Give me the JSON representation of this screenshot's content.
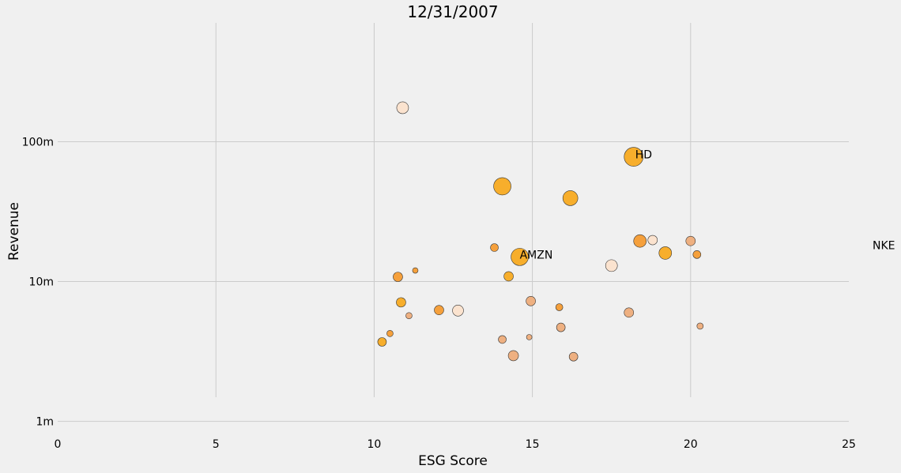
{
  "chart_data": {
    "type": "scatter",
    "title": "12/31/2007",
    "xlabel": "ESG Score",
    "ylabel": "Revenue",
    "xlim": [
      0,
      25
    ],
    "ylim_log10": [
      5.8,
      8.85
    ],
    "yscale": "log",
    "grid": true,
    "x_ticks": [
      {
        "value": 0,
        "label": "0"
      },
      {
        "value": 5,
        "label": "5"
      },
      {
        "value": 10,
        "label": "10"
      },
      {
        "value": 15,
        "label": "15"
      },
      {
        "value": 20,
        "label": "20"
      },
      {
        "value": 25,
        "label": "25"
      }
    ],
    "y_ticks": [
      {
        "value": 1000000,
        "label": "1m"
      },
      {
        "value": 10000000,
        "label": "10m"
      },
      {
        "value": 100000000,
        "label": "100m"
      }
    ],
    "points": [
      {
        "x": 10.9,
        "y": 175000000,
        "size": 11,
        "color": "#fbe3cf"
      },
      {
        "x": 18.2,
        "y": 78000000,
        "size": 20,
        "color": "#f7ae2c",
        "label": "HD"
      },
      {
        "x": 14.05,
        "y": 48000000,
        "size": 18,
        "color": "#f7ae2c"
      },
      {
        "x": 16.2,
        "y": 39500000,
        "size": 15,
        "color": "#f7ae2c"
      },
      {
        "x": 18.4,
        "y": 19500000,
        "size": 12,
        "color": "#f5a03c"
      },
      {
        "x": 18.8,
        "y": 19800000,
        "size": 8,
        "color": "#fbe3cf"
      },
      {
        "x": 20.0,
        "y": 19500000,
        "size": 8,
        "color": "#eeb081"
      },
      {
        "x": 19.2,
        "y": 16000000,
        "size": 12,
        "color": "#f7ae2c"
      },
      {
        "x": 20.2,
        "y": 15600000,
        "size": 6,
        "color": "#f5a03c"
      },
      {
        "x": 13.8,
        "y": 17500000,
        "size": 6,
        "color": "#f5a03c"
      },
      {
        "x": 14.6,
        "y": 15000000,
        "size": 18,
        "color": "#f7ae2c",
        "label": "AMZN"
      },
      {
        "x": 17.5,
        "y": 13000000,
        "size": 11,
        "color": "#fbe3cf"
      },
      {
        "x": 11.3,
        "y": 12000000,
        "size": 3,
        "color": "#f5a03c"
      },
      {
        "x": 10.75,
        "y": 10800000,
        "size": 8,
        "color": "#f5a03c"
      },
      {
        "x": 14.25,
        "y": 10900000,
        "size": 8,
        "color": "#f7ae2c"
      },
      {
        "x": 10.85,
        "y": 7100000,
        "size": 8,
        "color": "#f7ae2c"
      },
      {
        "x": 14.95,
        "y": 7250000,
        "size": 8,
        "color": "#eeb081"
      },
      {
        "x": 15.85,
        "y": 6550000,
        "size": 5,
        "color": "#f5a03c"
      },
      {
        "x": 12.05,
        "y": 6250000,
        "size": 8,
        "color": "#f5a03c"
      },
      {
        "x": 12.65,
        "y": 6200000,
        "size": 10,
        "color": "#fbe3cf"
      },
      {
        "x": 18.05,
        "y": 6000000,
        "size": 8,
        "color": "#eeb081"
      },
      {
        "x": 11.1,
        "y": 5700000,
        "size": 4,
        "color": "#eeb081"
      },
      {
        "x": 15.9,
        "y": 4700000,
        "size": 7,
        "color": "#eeb081"
      },
      {
        "x": 20.3,
        "y": 4800000,
        "size": 4,
        "color": "#eeb081"
      },
      {
        "x": 10.5,
        "y": 4250000,
        "size": 4,
        "color": "#f5a03c"
      },
      {
        "x": 14.9,
        "y": 4000000,
        "size": 3,
        "color": "#eeb081"
      },
      {
        "x": 14.05,
        "y": 3850000,
        "size": 6,
        "color": "#eeb081"
      },
      {
        "x": 10.25,
        "y": 3700000,
        "size": 7,
        "color": "#f7ae2c"
      },
      {
        "x": 14.4,
        "y": 2950000,
        "size": 9,
        "color": "#eeb081"
      },
      {
        "x": 16.3,
        "y": 2900000,
        "size": 7,
        "color": "#eeb081"
      }
    ],
    "annotations": [
      {
        "text": "HD",
        "x": 18.25,
        "y": 78000000
      },
      {
        "text": "AMZN",
        "x": 14.6,
        "y": 15000000
      },
      {
        "text": "NKE",
        "x": 25.75,
        "y": 17500000
      }
    ],
    "colors": {
      "background": "#f0f0f0",
      "grid": "#cbcbcb",
      "marker_edge": "#333333"
    }
  }
}
